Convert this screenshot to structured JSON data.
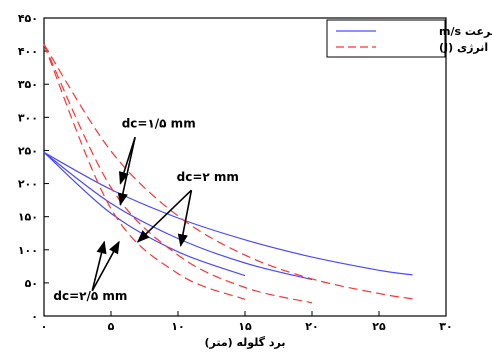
{
  "chart_data": {
    "type": "line",
    "xlabel": "برد گلوله (متر)",
    "ylabel": "",
    "xlim": [
      0,
      30
    ],
    "ylim": [
      0,
      450
    ],
    "x_ticks": [
      {
        "value": 0,
        "label": "۰"
      },
      {
        "value": 5,
        "label": "۵"
      },
      {
        "value": 10,
        "label": "۱۰"
      },
      {
        "value": 15,
        "label": "۱۵"
      },
      {
        "value": 20,
        "label": "۲۰"
      },
      {
        "value": 25,
        "label": "۲۵"
      },
      {
        "value": 30,
        "label": "۳۰"
      }
    ],
    "y_ticks": [
      {
        "value": 0,
        "label": "۰"
      },
      {
        "value": 50,
        "label": "۵۰"
      },
      {
        "value": 100,
        "label": "۱۰۰"
      },
      {
        "value": 150,
        "label": "۱۵۰"
      },
      {
        "value": 200,
        "label": "۲۰۰"
      },
      {
        "value": 250,
        "label": "۲۵۰"
      },
      {
        "value": 300,
        "label": "۳۰۰"
      },
      {
        "value": 350,
        "label": "۳۵۰"
      },
      {
        "value": 400,
        "label": "۴۰۰"
      },
      {
        "value": 450,
        "label": "۴۵۰"
      }
    ],
    "grid": false,
    "legend_position": "top-right",
    "legend": [
      {
        "label": "سرعت m/s",
        "color": "#4a4aff",
        "dash": "solid"
      },
      {
        "label": "انرژی (J)",
        "color": "#ff3333",
        "dash": "dashed"
      }
    ],
    "series": [
      {
        "legend_index": 0,
        "color": "#4a4aff",
        "dash": "solid",
        "x": [
          0,
          5,
          10,
          15,
          20,
          25,
          27.5
        ],
        "y": [
          247,
          191,
          148,
          115,
          89,
          69,
          62
        ]
      },
      {
        "legend_index": 0,
        "color": "#4a4aff",
        "dash": "solid",
        "x": [
          0,
          5,
          10,
          15,
          20
        ],
        "y": [
          247,
          170,
          117,
          80,
          55
        ]
      },
      {
        "legend_index": 0,
        "color": "#4a4aff",
        "dash": "solid",
        "x": [
          0,
          5,
          10,
          15
        ],
        "y": [
          247,
          155,
          97,
          61
        ]
      },
      {
        "legend_index": 1,
        "color": "#ff3333",
        "dash": "dashed",
        "x": [
          0,
          5,
          10,
          15,
          20,
          25,
          27.5
        ],
        "y": [
          410,
          249,
          151,
          92,
          56,
          34,
          26
        ]
      },
      {
        "legend_index": 1,
        "color": "#ff3333",
        "dash": "dashed",
        "x": [
          0,
          5,
          10,
          15,
          20
        ],
        "y": [
          410,
          194,
          92,
          43,
          20
        ]
      },
      {
        "legend_index": 1,
        "color": "#ff3333",
        "dash": "dashed",
        "x": [
          0,
          5,
          10,
          15
        ],
        "y": [
          410,
          162,
          64,
          25
        ]
      }
    ],
    "annotations": [
      {
        "text": "dc=۱/۵ mm",
        "tx": 5.8,
        "ty": 285,
        "arrows": [
          {
            "from": [
              6.8,
              270
            ],
            "to": [
              5.7,
              200
            ]
          },
          {
            "from": [
              6.8,
              270
            ],
            "to": [
              5.7,
              168
            ]
          }
        ]
      },
      {
        "text": "dc=۲ mm",
        "tx": 9.9,
        "ty": 204,
        "arrows": [
          {
            "from": [
              11.0,
              190
            ],
            "to": [
              7.0,
              112
            ]
          },
          {
            "from": [
              11.0,
              190
            ],
            "to": [
              10.2,
              106
            ]
          }
        ]
      },
      {
        "text": "dc=۲/۵ mm",
        "tx": 0.7,
        "ty": 24,
        "arrows": [
          {
            "from": [
              3.6,
              38
            ],
            "to": [
              4.5,
              112
            ]
          },
          {
            "from": [
              3.6,
              38
            ],
            "to": [
              5.6,
              112
            ]
          }
        ]
      }
    ]
  }
}
